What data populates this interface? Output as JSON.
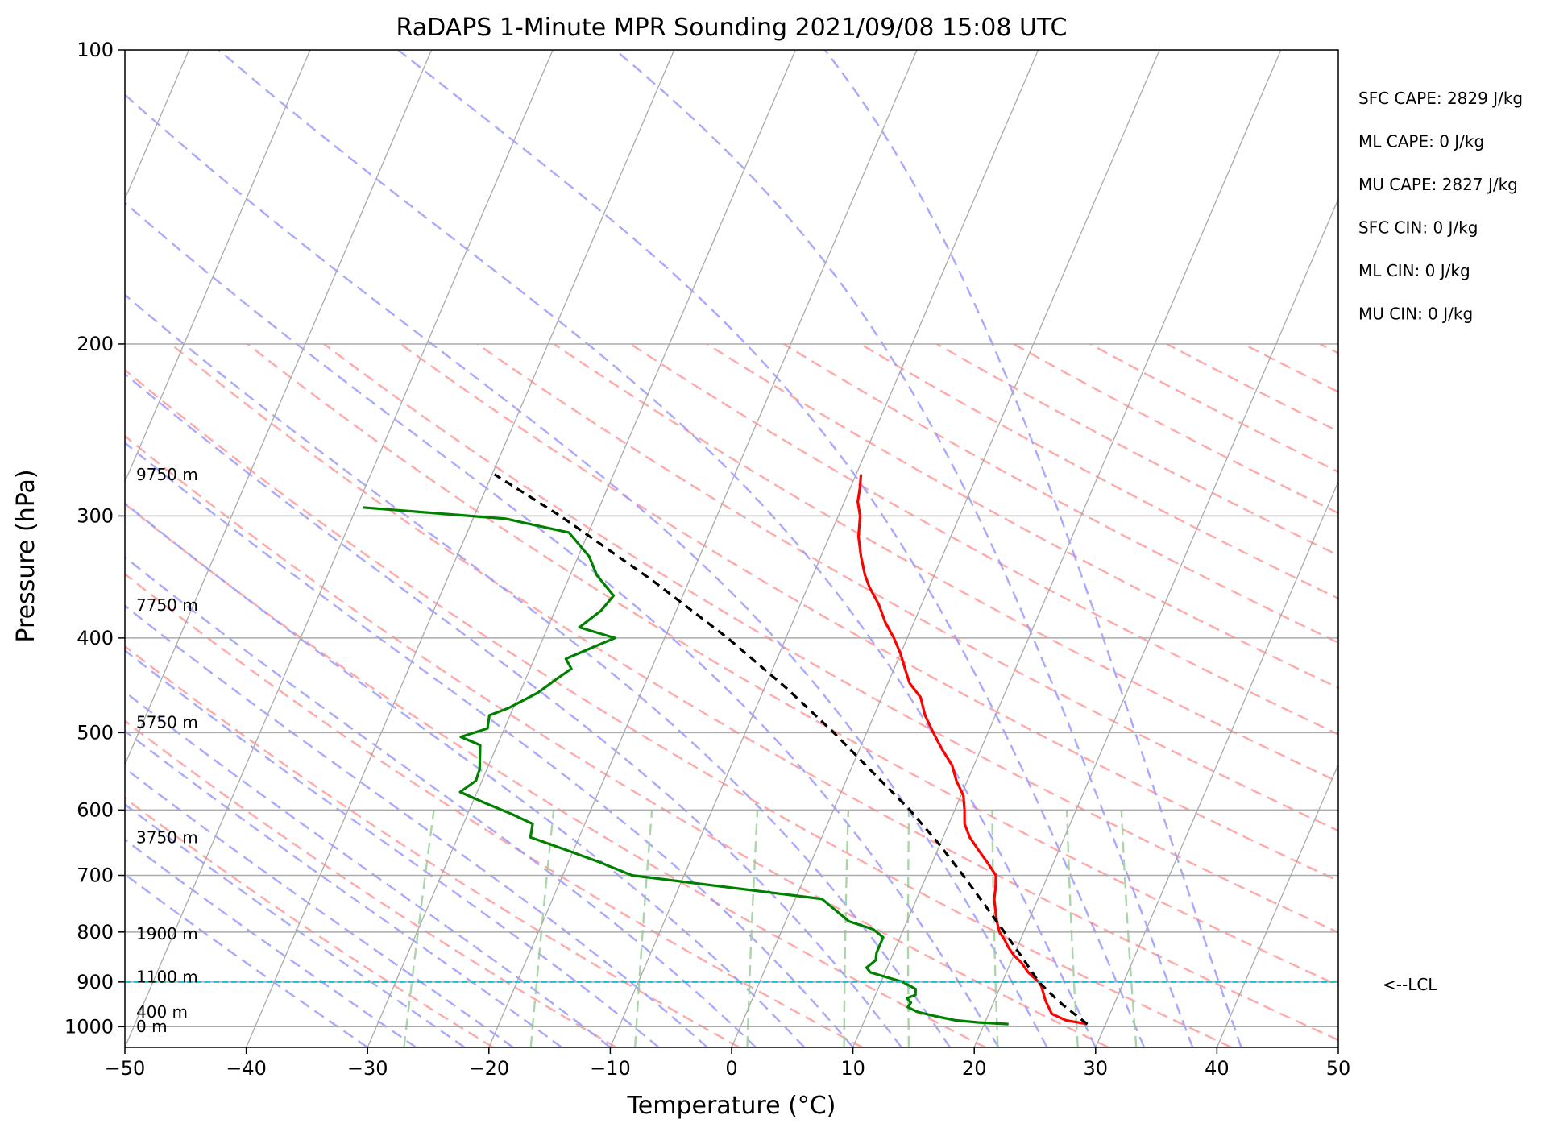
{
  "chart_data": {
    "type": "line",
    "title": "RaDAPS 1-Minute MPR Sounding 2021/09/08 15:08 UTC",
    "xlabel": "Temperature (°C)",
    "ylabel": "Pressure (hPa)",
    "xlim": [
      -50,
      50
    ],
    "ylim": [
      1050,
      100
    ],
    "y_scale": "log",
    "x_ticks": [
      -50,
      -40,
      -30,
      -20,
      -10,
      0,
      10,
      20,
      30,
      40,
      50
    ],
    "x_tick_labels": [
      "−50",
      "−40",
      "−30",
      "−20",
      "−10",
      "0",
      "10",
      "20",
      "30",
      "40",
      "50"
    ],
    "y_ticks": [
      100,
      200,
      300,
      400,
      500,
      600,
      700,
      800,
      900,
      1000
    ],
    "y_tick_labels": [
      "100",
      "200",
      "300",
      "400",
      "500",
      "600",
      "700",
      "800",
      "900",
      "1000"
    ],
    "skew_deg_per_log": 15,
    "grid": true,
    "series": [
      {
        "color": "#ff0000",
        "points": [
          [
            994,
            28.5
          ],
          [
            985,
            26.6
          ],
          [
            970,
            25.2
          ],
          [
            955,
            24.7
          ],
          [
            940,
            24.2
          ],
          [
            925,
            23.8
          ],
          [
            910,
            23.4
          ],
          [
            900,
            23.0
          ],
          [
            880,
            21.8
          ],
          [
            860,
            20.9
          ],
          [
            845,
            20.0
          ],
          [
            830,
            19.3
          ],
          [
            815,
            18.7
          ],
          [
            800,
            18.0
          ],
          [
            780,
            17.4
          ],
          [
            760,
            16.9
          ],
          [
            740,
            16.4
          ],
          [
            720,
            16.1
          ],
          [
            700,
            15.7
          ],
          [
            680,
            14.6
          ],
          [
            660,
            13.4
          ],
          [
            640,
            12.2
          ],
          [
            620,
            11.3
          ],
          [
            600,
            10.8
          ],
          [
            580,
            10.2
          ],
          [
            560,
            9.1
          ],
          [
            540,
            8.2
          ],
          [
            520,
            6.8
          ],
          [
            500,
            5.5
          ],
          [
            480,
            4.2
          ],
          [
            460,
            3.2
          ],
          [
            445,
            1.8
          ],
          [
            430,
            0.9
          ],
          [
            415,
            0.0
          ],
          [
            400,
            -1.1
          ],
          [
            385,
            -2.4
          ],
          [
            370,
            -3.5
          ],
          [
            355,
            -4.9
          ],
          [
            345,
            -5.7
          ],
          [
            330,
            -6.7
          ],
          [
            315,
            -7.6
          ],
          [
            300,
            -8.2
          ],
          [
            290,
            -8.9
          ],
          [
            281,
            -9.2
          ],
          [
            272,
            -9.6
          ]
        ]
      },
      {
        "color": "#008000",
        "points": [
          [
            994,
            22.0
          ],
          [
            990,
            19.4
          ],
          [
            985,
            17.5
          ],
          [
            975,
            15.6
          ],
          [
            965,
            14.0
          ],
          [
            955,
            13.1
          ],
          [
            945,
            13.2
          ],
          [
            935,
            12.7
          ],
          [
            928,
            13.3
          ],
          [
            915,
            13.1
          ],
          [
            900,
            11.8
          ],
          [
            880,
            8.8
          ],
          [
            870,
            8.3
          ],
          [
            855,
            8.8
          ],
          [
            840,
            8.6
          ],
          [
            825,
            8.6
          ],
          [
            810,
            8.6
          ],
          [
            795,
            7.5
          ],
          [
            780,
            5.2
          ],
          [
            740,
            2.2
          ],
          [
            700,
            -14.3
          ],
          [
            680,
            -17.2
          ],
          [
            660,
            -20.5
          ],
          [
            640,
            -24.0
          ],
          [
            620,
            -24.3
          ],
          [
            605,
            -26.5
          ],
          [
            590,
            -29.0
          ],
          [
            575,
            -31.4
          ],
          [
            560,
            -30.5
          ],
          [
            545,
            -30.6
          ],
          [
            530,
            -31.0
          ],
          [
            515,
            -31.4
          ],
          [
            505,
            -33.3
          ],
          [
            495,
            -31.4
          ],
          [
            480,
            -31.7
          ],
          [
            472,
            -30.4
          ],
          [
            455,
            -28.5
          ],
          [
            440,
            -27.4
          ],
          [
            430,
            -26.6
          ],
          [
            420,
            -27.4
          ],
          [
            400,
            -24.1
          ],
          [
            390,
            -27.4
          ],
          [
            375,
            -26.2
          ],
          [
            362,
            -25.7
          ],
          [
            345,
            -27.8
          ],
          [
            330,
            -29.1
          ],
          [
            312,
            -31.6
          ],
          [
            302,
            -37.3
          ],
          [
            294,
            -49.5
          ]
        ]
      },
      {
        "color": "#000000",
        "dashed": true,
        "points": [
          [
            994,
            28.5
          ],
          [
            950,
            25.8
          ],
          [
            925,
            24.4
          ],
          [
            900,
            23.0
          ],
          [
            850,
            20.8
          ],
          [
            800,
            18.4
          ],
          [
            750,
            15.8
          ],
          [
            700,
            13.0
          ],
          [
            650,
            9.9
          ],
          [
            600,
            6.3
          ],
          [
            550,
            2.0
          ],
          [
            500,
            -2.7
          ],
          [
            450,
            -8.2
          ],
          [
            400,
            -14.8
          ],
          [
            350,
            -22.9
          ],
          [
            300,
            -32.9
          ],
          [
            272,
            -39.8
          ]
        ]
      }
    ],
    "lcl": {
      "pressure": 900,
      "label": "<--LCL",
      "color": "#17becf"
    },
    "height_labels": [
      {
        "p": 272,
        "text": "9750 m"
      },
      {
        "p": 370,
        "text": "7750 m"
      },
      {
        "p": 488,
        "text": "5750 m"
      },
      {
        "p": 640,
        "text": "3750 m"
      },
      {
        "p": 803,
        "text": "1900 m"
      },
      {
        "p": 889,
        "text": "1100 m"
      },
      {
        "p": 966,
        "text": "400 m"
      },
      {
        "p": 999,
        "text": "0 m"
      }
    ],
    "annotations": [
      "SFC CAPE: 2829 J/kg",
      "ML CAPE: 0 J/kg",
      "MU CAPE: 2827 J/kg",
      "SFC CIN: 0 J/kg",
      "ML CIN: 0 J/kg",
      "MU CIN: 0 J/kg"
    ],
    "colors": {
      "isotherm": "#aaaaaa",
      "dry_adiabat": "#ff9a9a",
      "moist_adiabat": "#9a9aff",
      "mixing_ratio": "#9acf9a"
    }
  }
}
